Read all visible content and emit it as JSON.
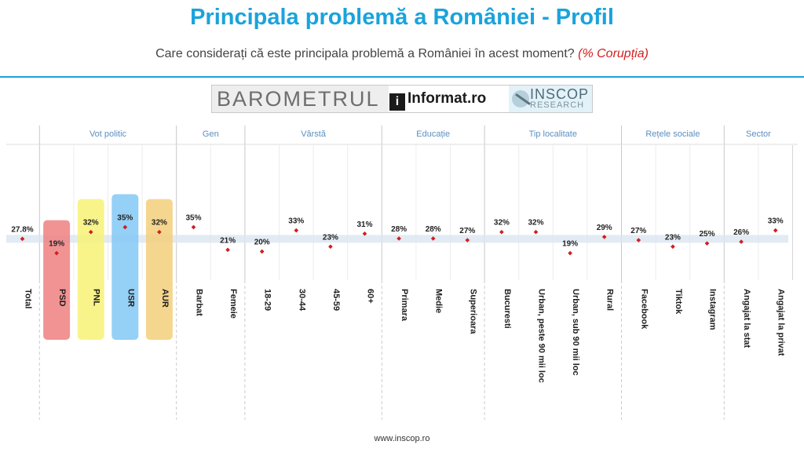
{
  "title": "Principala problemă a României - Profil",
  "subtitle": {
    "question": "Care considerați că este principala problemă a României în acest moment?",
    "highlight": "(% Corupția)"
  },
  "banner": {
    "barometrul": "BAROMETRUL",
    "informat_icon": "i",
    "informat": "Informat.ro",
    "inscop_line1": "INSCOP",
    "inscop_line2": "RESEARCH"
  },
  "footer": "www.inscop.ro",
  "colors": {
    "title": "#1aa3dc",
    "group_label": "#5b8fbf",
    "point": "#d21e1e",
    "total_band": "#dbe6f1",
    "PSD": "#f08080",
    "PNL": "#f7f275",
    "USR": "#82c8f5",
    "AUR": "#f3cf7a"
  },
  "chart_data": {
    "type": "scatter",
    "y_unit": "%",
    "reference_line": 27.8,
    "groups": [
      {
        "name": "",
        "categories": [
          "Total"
        ]
      },
      {
        "name": "Vot politic",
        "categories": [
          "PSD",
          "PNL",
          "USR",
          "AUR"
        ]
      },
      {
        "name": "Gen",
        "categories": [
          "Barbat",
          "Femeie"
        ]
      },
      {
        "name": "Vârstă",
        "categories": [
          "18-29",
          "30-44",
          "45-59",
          "60+"
        ]
      },
      {
        "name": "Educație",
        "categories": [
          "Primara",
          "Medie",
          "Superioara"
        ]
      },
      {
        "name": "Tip localitate",
        "categories": [
          "Bucuresti",
          "Urban, peste 90 mii loc",
          "Urban, sub 90 mii loc",
          "Rural"
        ]
      },
      {
        "name": "Rețele sociale",
        "categories": [
          "Facebook",
          "Tiktok",
          "Instagram"
        ]
      },
      {
        "name": "Sector",
        "categories": [
          "Angajat la stat",
          "Angajat la privat"
        ]
      }
    ],
    "categories": [
      "Total",
      "PSD",
      "PNL",
      "USR",
      "AUR",
      "Barbat",
      "Femeie",
      "18-29",
      "30-44",
      "45-59",
      "60+",
      "Primara",
      "Medie",
      "Superioara",
      "Bucuresti",
      "Urban, peste 90 mii loc",
      "Urban, sub 90 mii loc",
      "Rural",
      "Facebook",
      "Tiktok",
      "Instagram",
      "Angajat la stat",
      "Angajat la privat"
    ],
    "values": [
      27.8,
      19,
      32,
      35,
      32,
      35,
      21,
      20,
      33,
      23,
      31,
      28,
      28,
      27,
      32,
      32,
      19,
      29,
      27,
      23,
      25,
      26,
      33
    ],
    "labels": [
      "27.8%",
      "19%",
      "32%",
      "35%",
      "32%",
      "35%",
      "21%",
      "20%",
      "33%",
      "23%",
      "31%",
      "28%",
      "28%",
      "27%",
      "32%",
      "32%",
      "19%",
      "29%",
      "27%",
      "23%",
      "25%",
      "26%",
      "33%"
    ]
  }
}
